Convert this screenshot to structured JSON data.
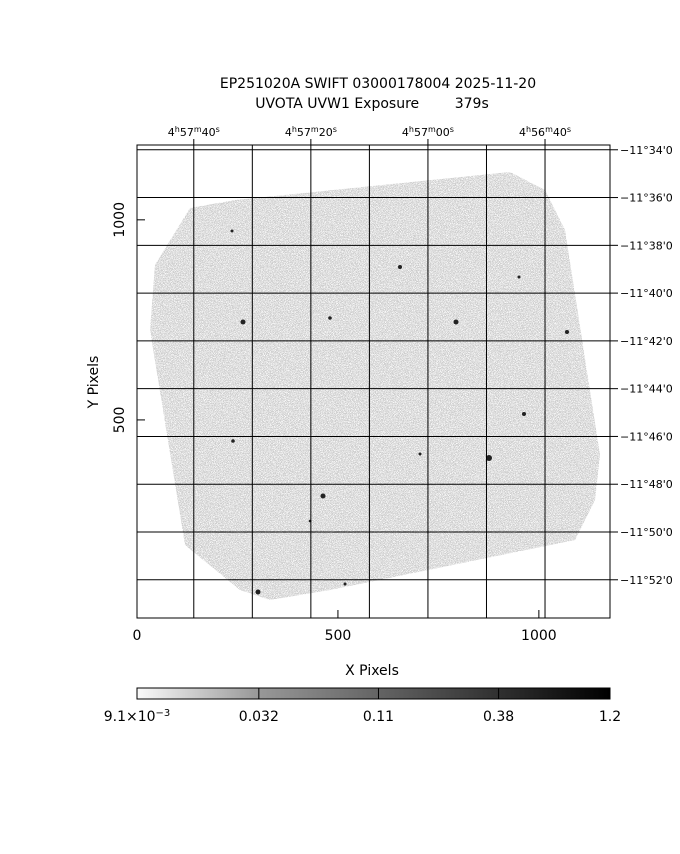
{
  "chart_data": {
    "type": "image",
    "title": "EP251020A SWIFT 03000178004 2025-11-20",
    "subtitle": "UVOTA UVW1 Exposure        379s",
    "x_label": "X Pixels",
    "y_label": "Y Pixels",
    "xlim": [
      0,
      1177
    ],
    "ylim": [
      5,
      1187
    ],
    "xticks": [
      0,
      500,
      1000
    ],
    "yticks": [
      500,
      1000
    ],
    "x2lim": [
      17869.7,
      17788.9
    ],
    "x2ticks": [
      {
        "value": 17860,
        "label": [
          "4",
          "h",
          "57",
          "m",
          "40",
          "s"
        ]
      },
      {
        "value": 17840,
        "label": [
          "4",
          "h",
          "57",
          "m",
          "20",
          "s"
        ]
      },
      {
        "value": 17820,
        "label": [
          "4",
          "h",
          "57",
          "m",
          "00",
          "s"
        ]
      },
      {
        "value": 17800,
        "label": [
          "4",
          "h",
          "56",
          "m",
          "40",
          "s"
        ]
      }
    ],
    "x2grid": [
      17860,
      17850,
      17840,
      17830,
      17820,
      17810,
      17800
    ],
    "y2lim": [
      -693.8,
      -713.6
    ],
    "y2ticks": [
      {
        "value": -694,
        "label": "−11°34'0"
      },
      {
        "value": -696,
        "label": "−11°36'0"
      },
      {
        "value": -698,
        "label": "−11°38'0"
      },
      {
        "value": -700,
        "label": "−11°40'0"
      },
      {
        "value": -702,
        "label": "−11°42'0"
      },
      {
        "value": -704,
        "label": "−11°44'0"
      },
      {
        "value": -706,
        "label": "−11°46'0"
      },
      {
        "value": -708,
        "label": "−11°48'0"
      },
      {
        "value": -710,
        "label": "−11°50'0"
      },
      {
        "value": -712,
        "label": "−11°52'0"
      }
    ],
    "colorbar": {
      "log": true,
      "lim": [
        0.0091,
        1.2
      ],
      "ticks": [
        {
          "value": 0.0091,
          "label": [
            "9.1×10",
            "−3"
          ]
        },
        0.032,
        0.11,
        0.38,
        1.2
      ]
    }
  }
}
